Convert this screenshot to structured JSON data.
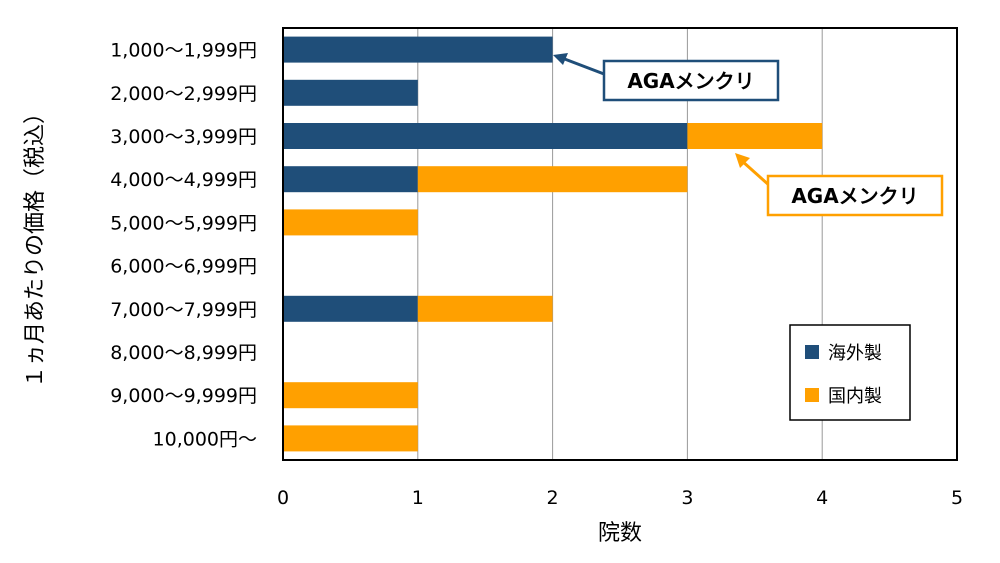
{
  "chart_data": {
    "type": "bar",
    "orientation": "horizontal",
    "stacked": true,
    "categories": [
      "1,000～1,999円",
      "2,000～2,999円",
      "3,000～3,999円",
      "4,000～4,999円",
      "5,000～5,999円",
      "6,000～6,999円",
      "7,000～7,999円",
      "8,000～8,999円",
      "9,000～9,999円",
      "10,000円～"
    ],
    "series": [
      {
        "name": "海外製",
        "color": "#1f4e79",
        "values": [
          2,
          1,
          3,
          1,
          0,
          0,
          1,
          0,
          0,
          0
        ]
      },
      {
        "name": "国内製",
        "color": "#ffa000",
        "values": [
          0,
          0,
          1,
          2,
          1,
          0,
          1,
          0,
          1,
          1
        ]
      }
    ],
    "xlabel": "院数",
    "ylabel": "１ヵ月あたりの価格（税込）",
    "xlim": [
      0,
      5
    ],
    "xticks": [
      "0",
      "1",
      "2",
      "3",
      "4",
      "5"
    ],
    "grid": "vertical",
    "legend": "bottom-right",
    "annotations": [
      {
        "text": "AGAメンクリ",
        "target_category": "1,000～1,999円",
        "series": "海外製",
        "border": "#1f4e79"
      },
      {
        "text": "AGAメンクリ",
        "target_category": "3,000～3,999円",
        "series": "国内製",
        "border": "#ffa000"
      }
    ]
  }
}
